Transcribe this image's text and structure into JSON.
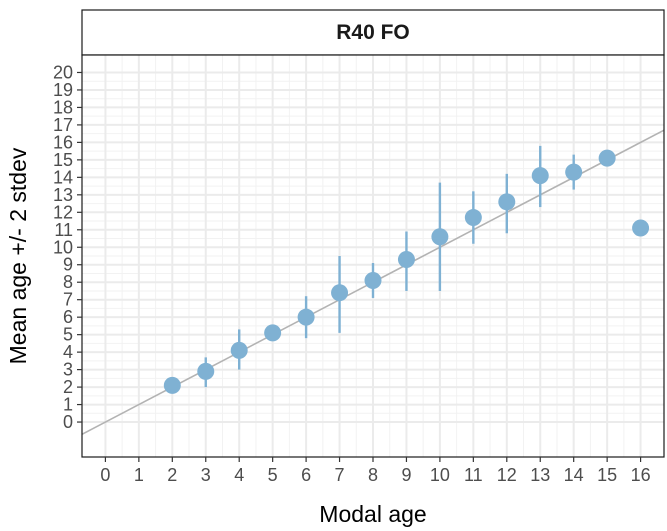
{
  "chart_data": {
    "type": "scatter",
    "facet_label": "R40 FO",
    "xlabel": "Modal age",
    "ylabel": "Mean age +/- 2 stdev",
    "xlim": [
      -0.7,
      16.7
    ],
    "ylim": [
      -2.0,
      21.0
    ],
    "x_ticks": [
      0,
      1,
      2,
      3,
      4,
      5,
      6,
      7,
      8,
      9,
      10,
      11,
      12,
      13,
      14,
      15,
      16
    ],
    "y_ticks": [
      0,
      1,
      2,
      3,
      4,
      5,
      6,
      7,
      8,
      9,
      10,
      11,
      12,
      13,
      14,
      15,
      16,
      17,
      18,
      19,
      20
    ],
    "grid": true,
    "reference_line": {
      "slope": 1,
      "intercept": 0
    },
    "point_color": "#7fb1d3",
    "line_color": "#b3b3b3",
    "points": [
      {
        "x": 2,
        "y": 2.1,
        "low": 2.1,
        "high": 2.1
      },
      {
        "x": 3,
        "y": 2.9,
        "low": 2.0,
        "high": 3.7
      },
      {
        "x": 4,
        "y": 4.1,
        "low": 3.0,
        "high": 5.3
      },
      {
        "x": 5,
        "y": 5.1,
        "low": 5.1,
        "high": 5.1
      },
      {
        "x": 6,
        "y": 6.0,
        "low": 4.8,
        "high": 7.2
      },
      {
        "x": 7,
        "y": 7.4,
        "low": 5.1,
        "high": 9.5
      },
      {
        "x": 8,
        "y": 8.1,
        "low": 7.1,
        "high": 9.1
      },
      {
        "x": 9,
        "y": 9.3,
        "low": 7.5,
        "high": 10.9
      },
      {
        "x": 10,
        "y": 10.6,
        "low": 7.5,
        "high": 13.7
      },
      {
        "x": 11,
        "y": 11.7,
        "low": 10.2,
        "high": 13.2
      },
      {
        "x": 12,
        "y": 12.6,
        "low": 10.8,
        "high": 14.2
      },
      {
        "x": 13,
        "y": 14.1,
        "low": 12.3,
        "high": 15.8
      },
      {
        "x": 14,
        "y": 14.3,
        "low": 13.3,
        "high": 15.3
      },
      {
        "x": 15,
        "y": 15.1,
        "low": 15.1,
        "high": 15.1
      },
      {
        "x": 16,
        "y": 11.1,
        "low": 11.1,
        "high": 11.1
      }
    ]
  }
}
